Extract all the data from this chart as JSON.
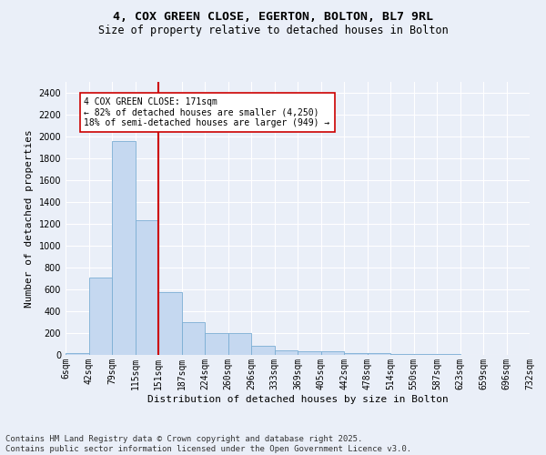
{
  "title_line1": "4, COX GREEN CLOSE, EGERTON, BOLTON, BL7 9RL",
  "title_line2": "Size of property relative to detached houses in Bolton",
  "xlabel": "Distribution of detached houses by size in Bolton",
  "ylabel": "Number of detached properties",
  "bar_values": [
    20,
    710,
    1960,
    1235,
    575,
    300,
    200,
    200,
    85,
    45,
    35,
    35,
    20,
    15,
    10,
    5,
    5,
    0,
    0,
    0
  ],
  "categories": [
    "6sqm",
    "42sqm",
    "79sqm",
    "115sqm",
    "151sqm",
    "187sqm",
    "224sqm",
    "260sqm",
    "296sqm",
    "333sqm",
    "369sqm",
    "405sqm",
    "442sqm",
    "478sqm",
    "514sqm",
    "550sqm",
    "587sqm",
    "623sqm",
    "659sqm",
    "696sqm",
    "732sqm"
  ],
  "bar_color": "#c5d8f0",
  "bar_edge_color": "#7baed4",
  "marker_color": "#cc0000",
  "annotation_text": "4 COX GREEN CLOSE: 171sqm\n← 82% of detached houses are smaller (4,250)\n18% of semi-detached houses are larger (949) →",
  "annotation_box_color": "#ffffff",
  "annotation_box_edge": "#cc0000",
  "ylim": [
    0,
    2500
  ],
  "yticks": [
    0,
    200,
    400,
    600,
    800,
    1000,
    1200,
    1400,
    1600,
    1800,
    2000,
    2200,
    2400
  ],
  "footer_line1": "Contains HM Land Registry data © Crown copyright and database right 2025.",
  "footer_line2": "Contains public sector information licensed under the Open Government Licence v3.0.",
  "bg_color": "#eaeff8",
  "plot_bg_color": "#eaeff8",
  "grid_color": "#ffffff",
  "title_fontsize": 9.5,
  "subtitle_fontsize": 8.5,
  "axis_label_fontsize": 8,
  "tick_fontsize": 7,
  "annotation_fontsize": 7,
  "footer_fontsize": 6.5
}
